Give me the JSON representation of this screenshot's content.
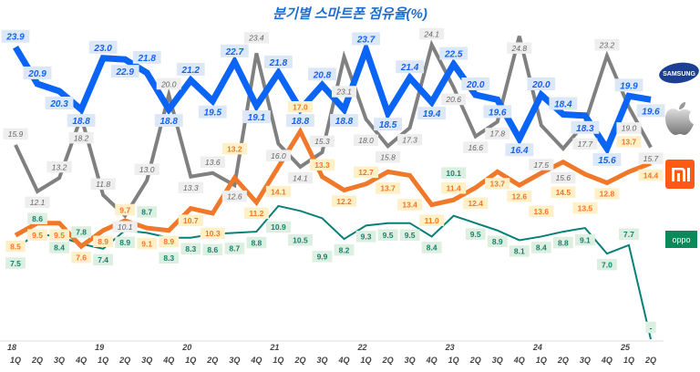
{
  "chart_data": {
    "type": "line",
    "title": "분기별 스마트폰 점유율(%)",
    "xlabel": "",
    "ylabel": "",
    "ylim": [
      0,
      26
    ],
    "grid": false,
    "legend": "right (brand logos)",
    "years": [
      "18",
      "19",
      "20",
      "21",
      "22",
      "23",
      "24",
      "25"
    ],
    "categories": [
      "1Q",
      "2Q",
      "3Q",
      "4Q",
      "1Q",
      "2Q",
      "3Q",
      "4Q",
      "1Q",
      "2Q",
      "3Q",
      "4Q",
      "1Q",
      "2Q",
      "3Q",
      "4Q",
      "1Q",
      "2Q",
      "3Q",
      "4Q",
      "1Q",
      "2Q",
      "3Q",
      "4Q",
      "1Q",
      "2Q",
      "3Q",
      "4Q",
      "1Q",
      "2Q"
    ],
    "series": [
      {
        "name": "SAMSUNG",
        "color": "#0a64f5",
        "values": [
          23.9,
          20.9,
          20.3,
          18.8,
          23.0,
          22.9,
          21.8,
          18.8,
          21.2,
          19.5,
          22.7,
          19.1,
          21.8,
          18.8,
          20.8,
          18.8,
          23.7,
          18.5,
          21.4,
          19.4,
          22.5,
          20.0,
          19.6,
          16.4,
          20.0,
          18.4,
          18.3,
          15.6,
          19.9,
          19.6
        ]
      },
      {
        "name": "Apple",
        "color": "#808080",
        "values": [
          15.9,
          12.1,
          13.2,
          18.2,
          11.8,
          10.1,
          13.0,
          20.0,
          13.3,
          13.6,
          12.6,
          23.4,
          16.0,
          14.1,
          15.3,
          23.1,
          18.0,
          15.8,
          17.3,
          24.1,
          20.6,
          16.6,
          17.8,
          24.8,
          17.5,
          15.6,
          17.7,
          23.2,
          19.0,
          15.7
        ]
      },
      {
        "name": "mi",
        "color": "#f07828",
        "values": [
          8.5,
          9.5,
          9.5,
          7.6,
          8.9,
          9.7,
          9.1,
          8.9,
          10.7,
          10.3,
          13.2,
          11.2,
          14.1,
          17.0,
          13.3,
          12.2,
          12.7,
          13.7,
          13.4,
          11.0,
          11.4,
          12.4,
          13.7,
          12.6,
          13.6,
          14.5,
          13.5,
          12.8,
          13.7,
          14.4
        ]
      },
      {
        "name": "oppo",
        "color": "#088078",
        "values": [
          7.5,
          8.6,
          8.4,
          7.8,
          7.4,
          8.9,
          8.7,
          8.3,
          8.3,
          8.6,
          8.7,
          8.8,
          10.9,
          10.5,
          9.9,
          8.2,
          9.3,
          9.5,
          9.5,
          8.4,
          10.1,
          9.5,
          8.9,
          8.1,
          8.4,
          8.8,
          9.1,
          7.0,
          7.7,
          0
        ]
      }
    ],
    "last_oppo_label": "-"
  },
  "logos": {
    "samsung": "SAMSUNG",
    "oppo": "oppo"
  }
}
